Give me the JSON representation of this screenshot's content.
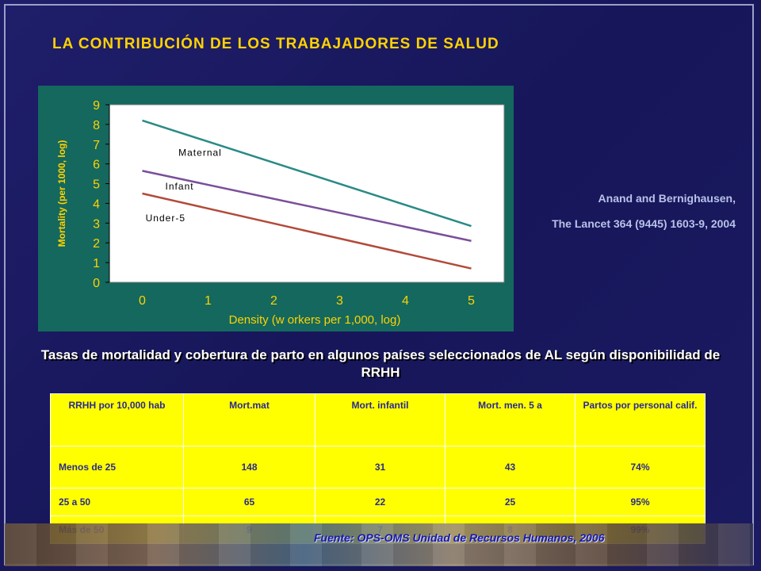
{
  "title": "LA  CONTRIBUCIÓN DE LOS  TRABAJADORES DE SALUD",
  "citation": {
    "line1": "Anand and Bernighausen,",
    "line2": "The Lancet 364 (9445) 1603-9, 2004"
  },
  "subtitle": "Tasas de mortalidad y cobertura de parto en algunos países seleccionados de AL según disponibilidad de RRHH",
  "table": {
    "headers": [
      "RRHH por 10,000 hab",
      "Mort.mat",
      "Mort. infantil",
      "Mort. men. 5 a",
      "Partos por personal calif."
    ],
    "rows": [
      [
        "Menos de 25",
        "148",
        "31",
        "43",
        "74%"
      ],
      [
        "25 a 50",
        "65",
        "22",
        "25",
        "95%"
      ],
      [
        "Más de 50",
        "9",
        "7",
        "8",
        "99%"
      ]
    ]
  },
  "source": "Fuente: OPS-OMS Unidad de Recursos Humanos, 2006",
  "chart_data": {
    "type": "line",
    "xlabel": "Density (w orkers per 1,000, log)",
    "ylabel": "Mortality (per 1000, log)",
    "x_ticks": [
      "0",
      "1",
      "2",
      "3",
      "4",
      "5"
    ],
    "y_ticks": [
      "0",
      "1",
      "2",
      "3",
      "4",
      "5",
      "6",
      "7",
      "8",
      "9"
    ],
    "xlim": [
      -0.5,
      5.5
    ],
    "ylim": [
      0,
      9
    ],
    "grid": false,
    "series": [
      {
        "name": "Maternal",
        "x": [
          0,
          5
        ],
        "y": [
          8.2,
          2.85
        ],
        "color": "#2a8a86",
        "label_at": [
          0.55,
          6.4
        ]
      },
      {
        "name": "Infant",
        "x": [
          0,
          5
        ],
        "y": [
          5.65,
          2.1
        ],
        "color": "#7a4f9a",
        "label_at": [
          0.35,
          4.7
        ]
      },
      {
        "name": "Under-5",
        "x": [
          0,
          5
        ],
        "y": [
          4.5,
          0.7
        ],
        "color": "#b34a3a",
        "label_at": [
          0.05,
          3.1
        ]
      }
    ],
    "plot_bg": "#ffffff",
    "panel_bg": "#14685e",
    "axis_text_color": "#ffd200"
  }
}
